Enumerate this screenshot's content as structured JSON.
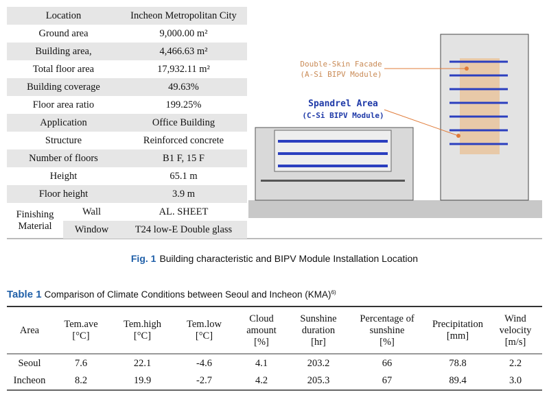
{
  "spec_table": {
    "rows": [
      {
        "label": "Location",
        "value": "Incheon Metropolitan City"
      },
      {
        "label": "Ground area",
        "value": "9,000.00 m²"
      },
      {
        "label": "Building area,",
        "value": "4,466.63 m²"
      },
      {
        "label": "Total floor area",
        "value": "17,932.11 m²"
      },
      {
        "label": "Building coverage",
        "value": "49.63%"
      },
      {
        "label": "Floor area ratio",
        "value": "199.25%"
      },
      {
        "label": "Application",
        "value": "Office Building"
      },
      {
        "label": "Structure",
        "value": "Reinforced concrete"
      },
      {
        "label": "Number of floors",
        "value": "B1 F, 15 F"
      },
      {
        "label": "Height",
        "value": "65.1 m"
      },
      {
        "label": "Floor height",
        "value": "3.9 m"
      }
    ],
    "finishing": {
      "label": "Finishing Material",
      "items": [
        {
          "label": "Wall",
          "value": "AL. SHEET"
        },
        {
          "label": "Window",
          "value": "T24 low-E Double glass"
        }
      ]
    }
  },
  "figure": {
    "labels": {
      "facade": "Double-Skin Facade",
      "facade_module": "(A-Si BIPV Module)",
      "spandrel": "Spandrel Area",
      "spandrel_module": "(C-Si BIPV Module)"
    },
    "caption": {
      "label": "Fig. 1",
      "text": "Building characteristic and BIPV Module Installation Location"
    }
  },
  "climate_table": {
    "title": {
      "label": "Table 1",
      "text": "Comparison of Climate Conditions between Seoul and Incheon (KMA)",
      "ref": "6)"
    },
    "header": [
      [
        "Area"
      ],
      [
        "Tem.ave",
        "[°C]"
      ],
      [
        "Tem.high",
        "[°C]"
      ],
      [
        "Tem.low",
        "[°C]"
      ],
      [
        "Cloud",
        "amount",
        "[%]"
      ],
      [
        "Sunshine",
        "duration",
        "[hr]"
      ],
      [
        "Percentage of",
        "sunshine",
        "[%]"
      ],
      [
        "Precipitation",
        "[mm]"
      ],
      [
        "Wind",
        "velocity",
        "[m/s]"
      ]
    ],
    "rows": [
      [
        "Seoul",
        "7.6",
        "22.1",
        "-4.6",
        "4.1",
        "203.2",
        "66",
        "78.8",
        "2.2"
      ],
      [
        "Incheon",
        "8.2",
        "19.9",
        "-2.7",
        "4.2",
        "205.3",
        "67",
        "89.4",
        "3.0"
      ]
    ]
  }
}
